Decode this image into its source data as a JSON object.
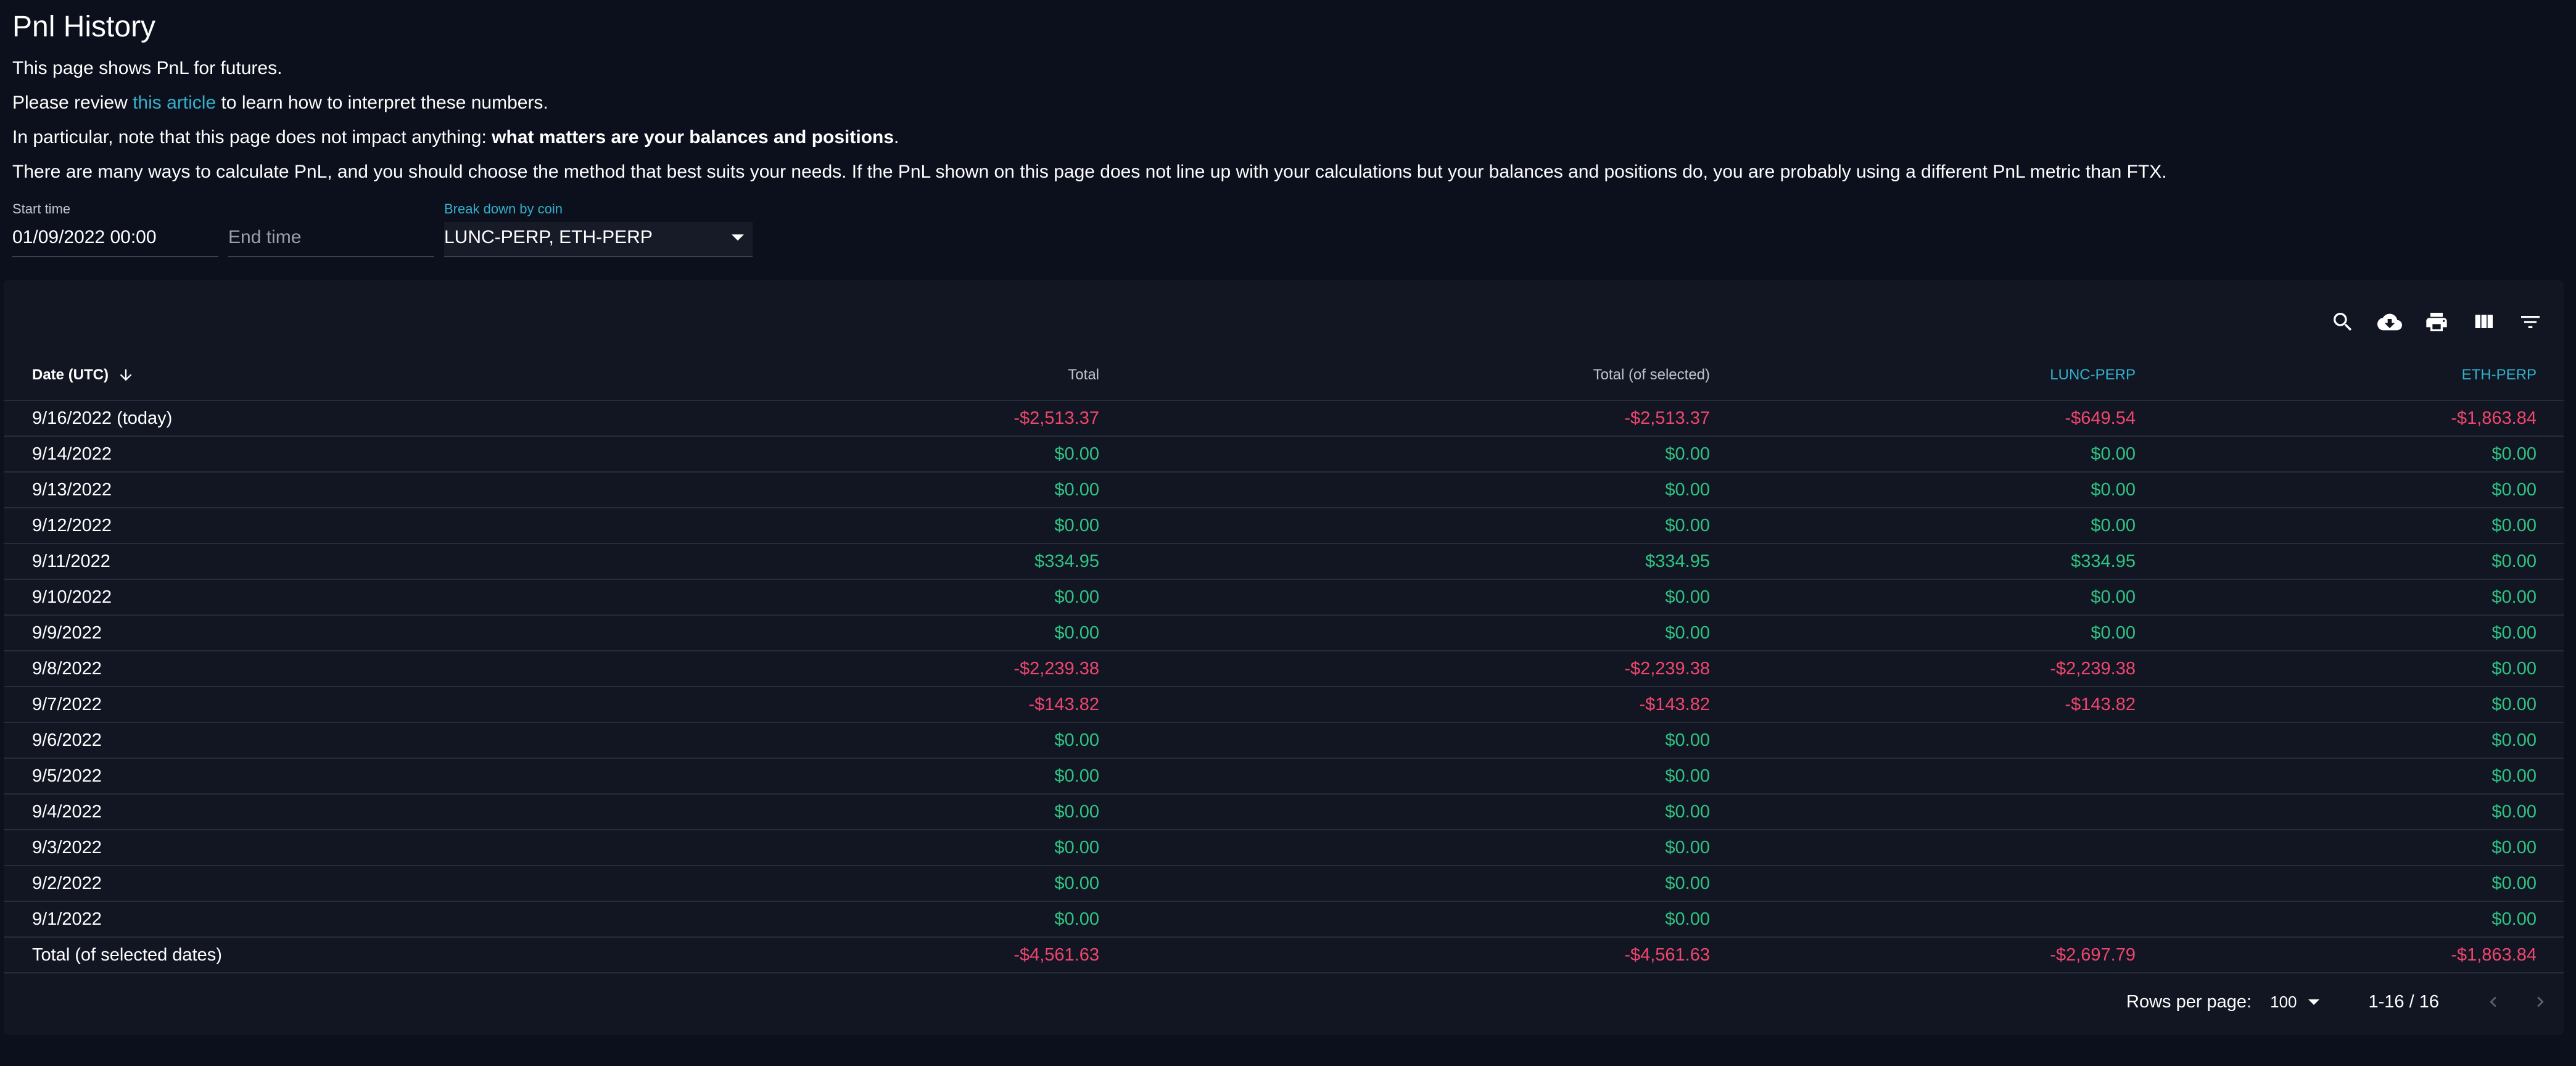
{
  "page": {
    "title": "Pnl History",
    "intro1": "This page shows PnL for futures.",
    "intro2_before": "Please review ",
    "intro2_link": "this article",
    "intro2_after": " to learn how to interpret these numbers.",
    "intro3_before": "In particular, note that this page does not impact anything: ",
    "intro3_bold": "what matters are your balances and positions",
    "intro3_after": ".",
    "intro4": "There are many ways to calculate PnL, and you should choose the method that best suits your needs. If the PnL shown on this page does not line up with your calculations but your balances and positions do, you are probably using a different PnL metric than FTX."
  },
  "filters": {
    "start_label": "Start time",
    "start_value": "01/09/2022 00:00",
    "end_placeholder": "End time",
    "coin_label": "Break down by coin",
    "coin_value": "LUNC-PERP, ETH-PERP"
  },
  "toolbar": {
    "icons": [
      "search-icon",
      "cloud-download-icon",
      "print-icon",
      "view-columns-icon",
      "filter-list-icon"
    ]
  },
  "table": {
    "headers": {
      "date": "Date (UTC)",
      "total": "Total",
      "total_selected": "Total (of selected)",
      "lunc": "LUNC-PERP",
      "eth": "ETH-PERP"
    },
    "rows": [
      {
        "date": "9/16/2022 (today)",
        "total": "-$2,513.37",
        "total_selected": "-$2,513.37",
        "lunc": "-$649.54",
        "eth": "-$1,863.84"
      },
      {
        "date": "9/14/2022",
        "total": "$0.00",
        "total_selected": "$0.00",
        "lunc": "$0.00",
        "eth": "$0.00"
      },
      {
        "date": "9/13/2022",
        "total": "$0.00",
        "total_selected": "$0.00",
        "lunc": "$0.00",
        "eth": "$0.00"
      },
      {
        "date": "9/12/2022",
        "total": "$0.00",
        "total_selected": "$0.00",
        "lunc": "$0.00",
        "eth": "$0.00"
      },
      {
        "date": "9/11/2022",
        "total": "$334.95",
        "total_selected": "$334.95",
        "lunc": "$334.95",
        "eth": "$0.00"
      },
      {
        "date": "9/10/2022",
        "total": "$0.00",
        "total_selected": "$0.00",
        "lunc": "$0.00",
        "eth": "$0.00"
      },
      {
        "date": "9/9/2022",
        "total": "$0.00",
        "total_selected": "$0.00",
        "lunc": "$0.00",
        "eth": "$0.00"
      },
      {
        "date": "9/8/2022",
        "total": "-$2,239.38",
        "total_selected": "-$2,239.38",
        "lunc": "-$2,239.38",
        "eth": "$0.00"
      },
      {
        "date": "9/7/2022",
        "total": "-$143.82",
        "total_selected": "-$143.82",
        "lunc": "-$143.82",
        "eth": "$0.00"
      },
      {
        "date": "9/6/2022",
        "total": "$0.00",
        "total_selected": "$0.00",
        "lunc": "",
        "eth": "$0.00"
      },
      {
        "date": "9/5/2022",
        "total": "$0.00",
        "total_selected": "$0.00",
        "lunc": "",
        "eth": "$0.00"
      },
      {
        "date": "9/4/2022",
        "total": "$0.00",
        "total_selected": "$0.00",
        "lunc": "",
        "eth": "$0.00"
      },
      {
        "date": "9/3/2022",
        "total": "$0.00",
        "total_selected": "$0.00",
        "lunc": "",
        "eth": "$0.00"
      },
      {
        "date": "9/2/2022",
        "total": "$0.00",
        "total_selected": "$0.00",
        "lunc": "",
        "eth": "$0.00"
      },
      {
        "date": "9/1/2022",
        "total": "$0.00",
        "total_selected": "$0.00",
        "lunc": "",
        "eth": "$0.00"
      },
      {
        "date": "Total (of selected dates)",
        "total": "-$4,561.63",
        "total_selected": "-$4,561.63",
        "lunc": "-$2,697.79",
        "eth": "-$1,863.84"
      }
    ]
  },
  "footer": {
    "rows_per_page_label": "Rows per page:",
    "rows_per_page_value": "100",
    "range": "1-16 / 16"
  },
  "colors": {
    "background": "#0b101c",
    "card": "#111622",
    "accent": "#33b0cc",
    "positive": "#2fc383",
    "negative": "#f0466e"
  }
}
